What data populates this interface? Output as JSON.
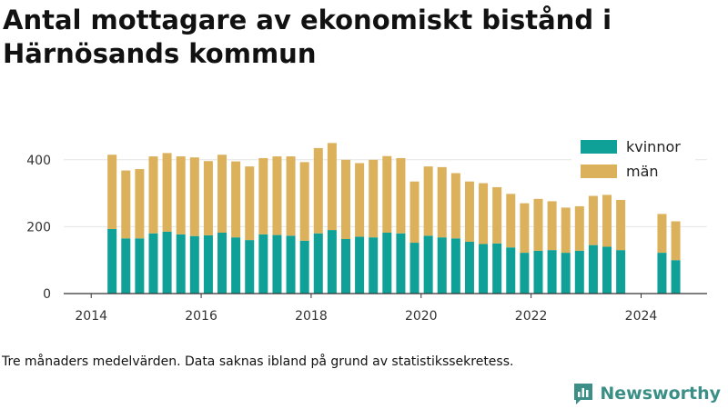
{
  "title": "Antal mottagare av ekonomiskt bistånd i Härnösands kommun",
  "note": "Tre månaders medelvärden. Data saknas ibland på grund av statistikssekretess.",
  "brand": {
    "name": "Newsworthy",
    "icon": "bar-chart-logo-icon",
    "color": "#3b8f86"
  },
  "colors": {
    "kvinnor": "#0fa098",
    "man": "#dbb15c",
    "gridline": "#e6e6e6",
    "axis": "#333333"
  },
  "chart_data": {
    "type": "bar",
    "stacked": true,
    "title": "Antal mottagare av ekonomiskt bistånd i Härnösands kommun",
    "xlabel": "",
    "ylabel": "",
    "ylim": [
      0,
      470
    ],
    "xlim": [
      2013.5,
      2025.2
    ],
    "yticks": [
      0,
      200,
      400
    ],
    "xticks": [
      2014,
      2016,
      2018,
      2020,
      2022,
      2024
    ],
    "grid": "horizontal",
    "legend_position": "top-right",
    "x": [
      2014.38,
      2014.63,
      2014.88,
      2015.13,
      2015.38,
      2015.63,
      2015.88,
      2016.13,
      2016.38,
      2016.63,
      2016.88,
      2017.13,
      2017.38,
      2017.63,
      2017.88,
      2018.13,
      2018.38,
      2018.63,
      2018.88,
      2019.13,
      2019.38,
      2019.63,
      2019.88,
      2020.13,
      2020.38,
      2020.63,
      2020.88,
      2021.13,
      2021.38,
      2021.63,
      2021.88,
      2022.13,
      2022.38,
      2022.63,
      2022.88,
      2023.13,
      2023.38,
      2023.63,
      2024.38,
      2024.63
    ],
    "series": [
      {
        "name": "kvinnor",
        "color": "#0fa098",
        "values": [
          193,
          165,
          165,
          180,
          185,
          177,
          172,
          174,
          182,
          168,
          160,
          177,
          175,
          173,
          158,
          180,
          190,
          163,
          170,
          168,
          182,
          180,
          152,
          173,
          168,
          165,
          155,
          148,
          150,
          138,
          122,
          128,
          130,
          122,
          128,
          145,
          140,
          130,
          122,
          100
        ]
      },
      {
        "name": "män",
        "color": "#dbb15c",
        "values": [
          222,
          203,
          207,
          230,
          235,
          233,
          235,
          222,
          233,
          227,
          220,
          228,
          235,
          237,
          235,
          255,
          260,
          237,
          220,
          232,
          229,
          225,
          183,
          207,
          210,
          195,
          180,
          182,
          168,
          160,
          148,
          155,
          146,
          135,
          133,
          147,
          155,
          150,
          116,
          116
        ]
      }
    ]
  }
}
